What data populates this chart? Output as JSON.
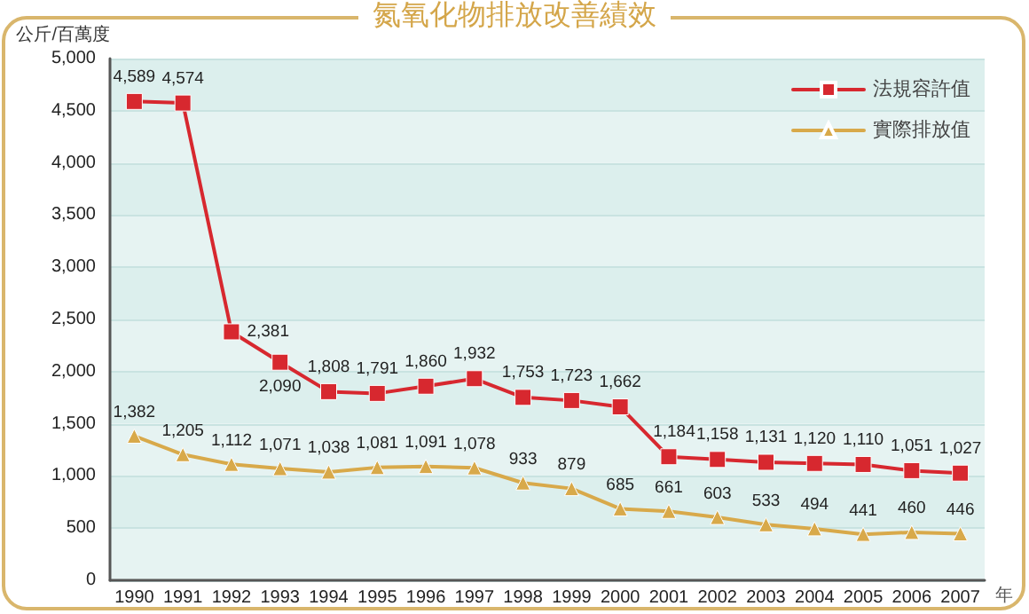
{
  "chart_data": {
    "type": "line",
    "title": "氮氧化物排放改善績效",
    "ylabel": "公斤/百萬度",
    "xlabel": "年",
    "categories": [
      "1990",
      "1991",
      "1992",
      "1993",
      "1994",
      "1995",
      "1996",
      "1997",
      "1998",
      "1999",
      "2000",
      "2001",
      "2002",
      "2003",
      "2004",
      "2005",
      "2006",
      "2007"
    ],
    "series": [
      {
        "name": "法規容許值",
        "color": "#d7282f",
        "marker": "square",
        "values": [
          4589,
          4574,
          2381,
          2090,
          1808,
          1791,
          1860,
          1932,
          1753,
          1723,
          1662,
          1184,
          1158,
          1131,
          1120,
          1110,
          1051,
          1027
        ],
        "value_labels": [
          "4,589",
          "4,574",
          "2,381",
          "2,090",
          "1,808",
          "1,791",
          "1,860",
          "1,932",
          "1,753",
          "1,723",
          "1,662",
          "1,184",
          "1,158",
          "1,131",
          "1,120",
          "1,110",
          "1,051",
          "1,027"
        ]
      },
      {
        "name": "實際排放值",
        "color": "#d8a94a",
        "marker": "triangle",
        "values": [
          1382,
          1205,
          1112,
          1071,
          1038,
          1081,
          1091,
          1078,
          933,
          879,
          685,
          661,
          603,
          533,
          494,
          441,
          460,
          446
        ],
        "value_labels": [
          "1,382",
          "1,205",
          "1,112",
          "1,071",
          "1,038",
          "1,081",
          "1,091",
          "1,078",
          "933",
          "879",
          "685",
          "661",
          "603",
          "533",
          "494",
          "441",
          "460",
          "446"
        ]
      }
    ],
    "ylim": [
      0,
      5000
    ],
    "yticks": [
      0,
      500,
      {
        "value": 1000,
        "label": "1,000"
      },
      {
        "value": 1500,
        "label": "1,500"
      },
      {
        "value": 2000,
        "label": "2,000"
      },
      {
        "value": 2500,
        "label": "2,500"
      },
      {
        "value": 3000,
        "label": "3,000"
      },
      {
        "value": 3500,
        "label": "3,500"
      },
      {
        "value": 4000,
        "label": "4,000"
      },
      {
        "value": 4500,
        "label": "4,500"
      },
      {
        "value": 5000,
        "label": "5,000"
      }
    ],
    "grid": "y",
    "legend": "top right"
  }
}
